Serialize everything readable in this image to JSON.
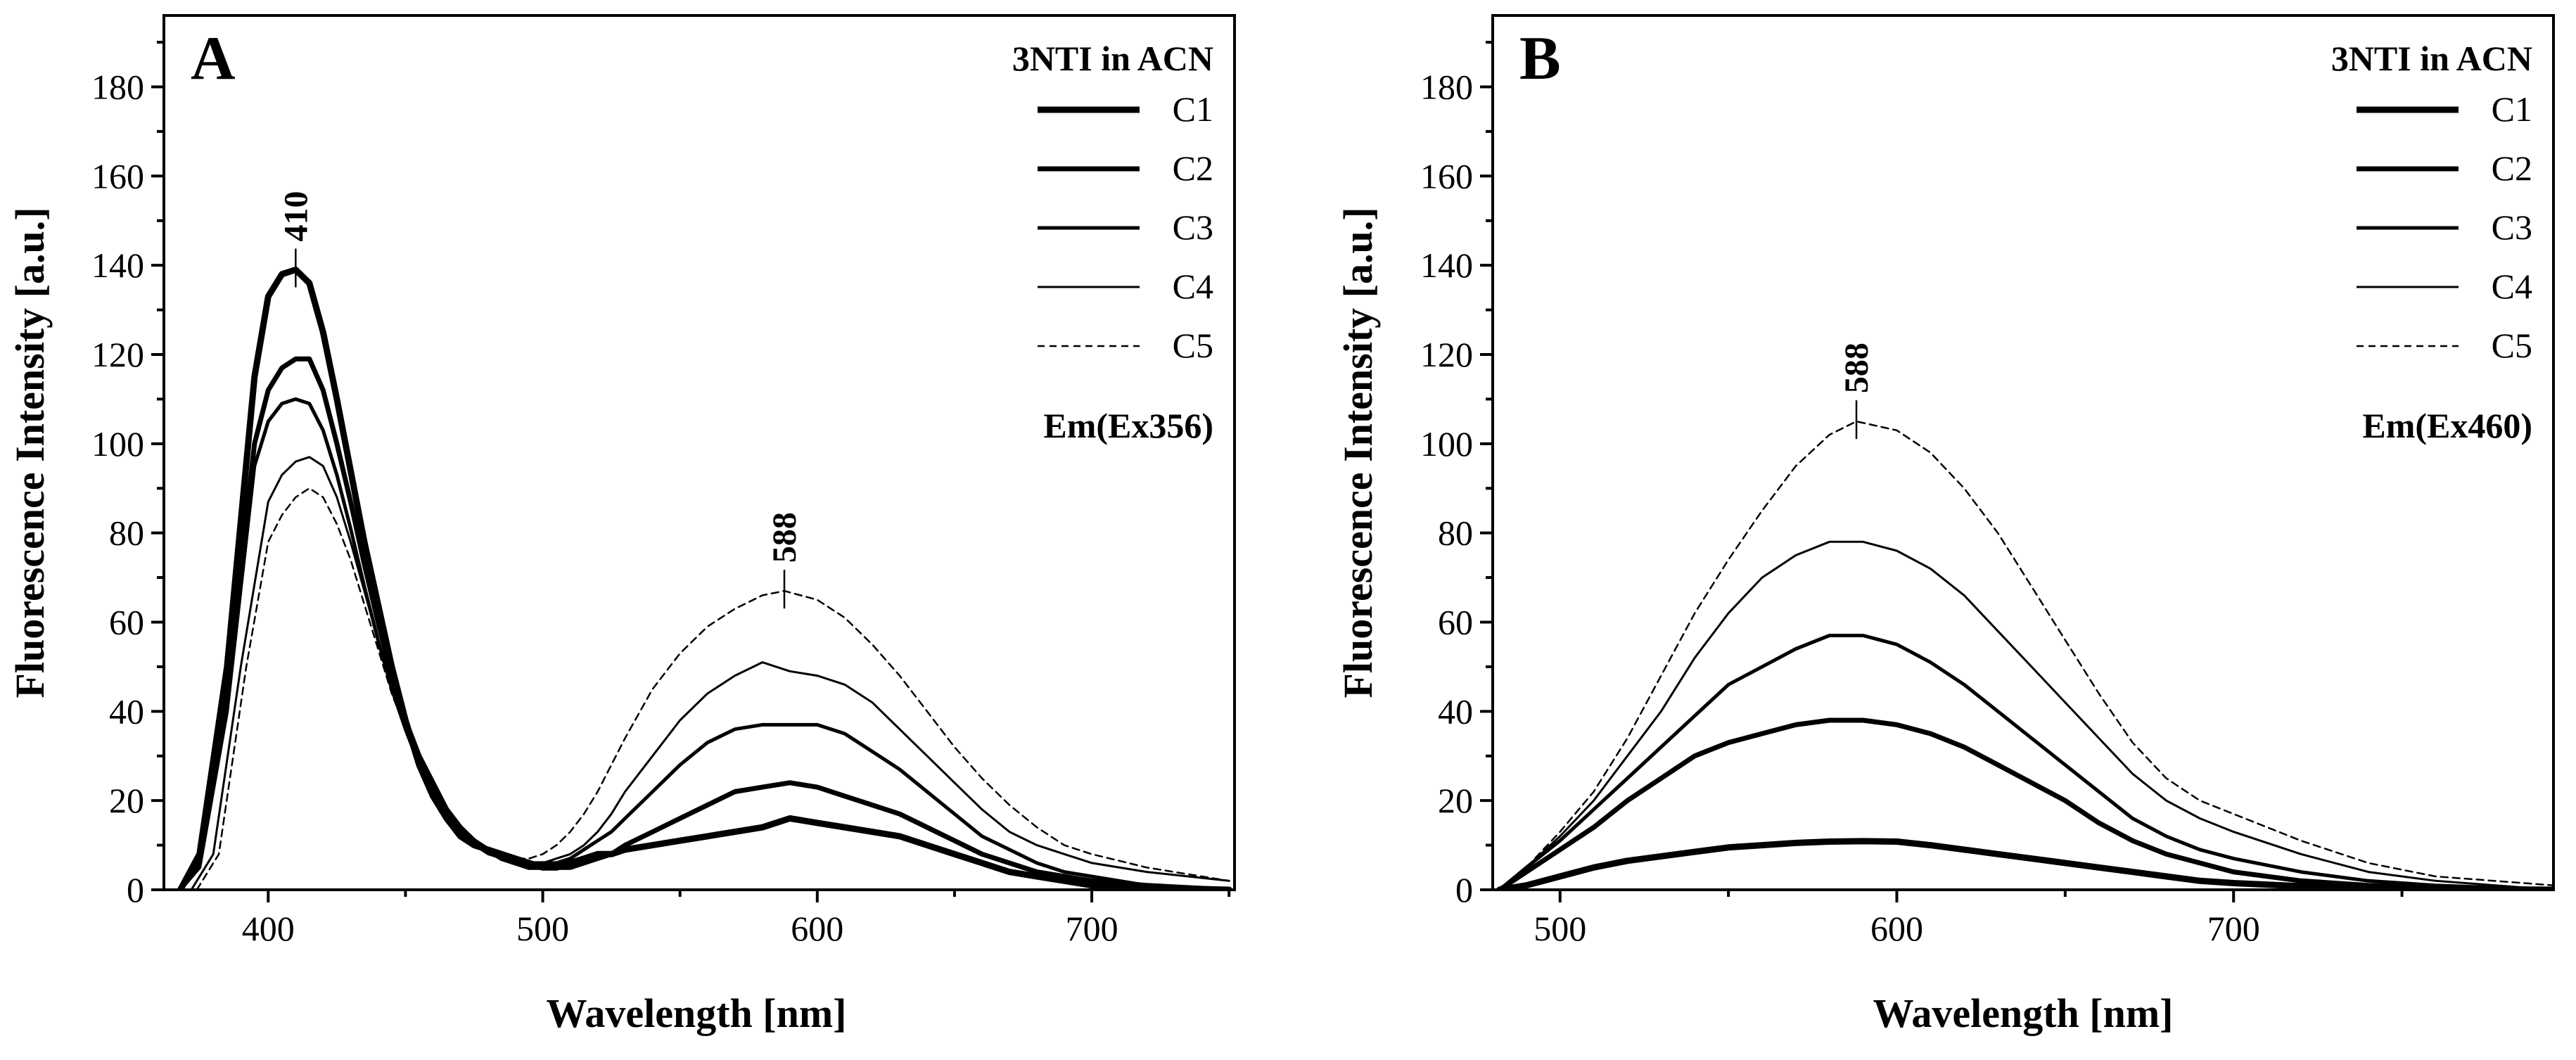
{
  "chart_data": [
    {
      "type": "line",
      "panel_label": "A",
      "xlabel": "Wavelength [nm]",
      "ylabel": "Fluorescence Intensity [a.u.]",
      "xlim": [
        362,
        752
      ],
      "ylim": [
        0,
        196
      ],
      "xticks": [
        400,
        500,
        600,
        700
      ],
      "yticks": [
        0,
        20,
        40,
        60,
        80,
        100,
        120,
        140,
        160,
        180
      ],
      "legend_title": "3NTI in ACN",
      "legend_placement": "top-right",
      "excitation_label": "Em(Ex356)",
      "peak_annotations": [
        {
          "text": "410",
          "x": 410,
          "y": 139
        },
        {
          "text": "588",
          "x": 588,
          "y": 67
        }
      ],
      "grid": false,
      "series": [
        {
          "name": "C1",
          "stroke_width": 9,
          "dash": "",
          "x": [
            368,
            375,
            385,
            395,
            400,
            405,
            410,
            415,
            420,
            425,
            430,
            435,
            440,
            445,
            450,
            455,
            460,
            465,
            470,
            475,
            480,
            485,
            490,
            495,
            500,
            505,
            510,
            515,
            520,
            525,
            530,
            540,
            550,
            560,
            570,
            580,
            590,
            600,
            610,
            620,
            630,
            640,
            650,
            660,
            670,
            680,
            690,
            700,
            720,
            750
          ],
          "y": [
            0,
            8,
            50,
            115,
            133,
            138,
            139,
            136,
            125,
            110,
            94,
            78,
            64,
            50,
            38,
            28,
            21,
            16,
            12,
            10,
            9,
            8,
            7,
            6,
            5,
            5,
            6,
            7,
            8,
            8,
            9,
            10,
            11,
            12,
            13,
            14,
            16,
            15,
            14,
            13,
            12,
            10,
            8,
            6,
            4,
            3,
            2,
            1,
            0.5,
            0
          ]
        },
        {
          "name": "C2",
          "stroke_width": 7,
          "dash": "",
          "x": [
            368,
            375,
            385,
            395,
            400,
            405,
            410,
            415,
            420,
            425,
            430,
            435,
            440,
            445,
            450,
            455,
            460,
            465,
            470,
            475,
            480,
            485,
            490,
            495,
            500,
            505,
            510,
            515,
            520,
            525,
            530,
            540,
            550,
            560,
            570,
            580,
            590,
            600,
            610,
            620,
            630,
            640,
            650,
            660,
            670,
            680,
            690,
            700,
            720,
            750
          ],
          "y": [
            0,
            6,
            45,
            100,
            112,
            117,
            119,
            119,
            112,
            100,
            87,
            73,
            60,
            48,
            38,
            30,
            24,
            18,
            14,
            11,
            9,
            7,
            6,
            5,
            5,
            5,
            5,
            6,
            7,
            8,
            10,
            13,
            16,
            19,
            22,
            23,
            24,
            23,
            21,
            19,
            17,
            14,
            11,
            8,
            6,
            4,
            3,
            2,
            1,
            0
          ]
        },
        {
          "name": "C3",
          "stroke_width": 5,
          "dash": "",
          "x": [
            368,
            375,
            385,
            395,
            400,
            405,
            410,
            415,
            420,
            425,
            430,
            435,
            440,
            445,
            450,
            455,
            460,
            465,
            470,
            475,
            480,
            485,
            490,
            495,
            500,
            505,
            510,
            515,
            520,
            525,
            530,
            540,
            550,
            560,
            570,
            580,
            590,
            600,
            610,
            620,
            630,
            640,
            650,
            660,
            670,
            680,
            690,
            700,
            720,
            750
          ],
          "y": [
            0,
            5,
            40,
            95,
            105,
            109,
            110,
            109,
            103,
            93,
            81,
            68,
            56,
            45,
            36,
            28,
            22,
            17,
            13,
            11,
            9,
            8,
            7,
            6,
            6,
            6,
            7,
            9,
            11,
            13,
            16,
            22,
            28,
            33,
            36,
            37,
            37,
            37,
            35,
            31,
            27,
            22,
            17,
            12,
            9,
            6,
            4,
            3,
            1,
            0
          ]
        },
        {
          "name": "C4",
          "stroke_width": 3,
          "dash": "",
          "x": [
            372,
            380,
            390,
            400,
            405,
            410,
            415,
            420,
            425,
            430,
            435,
            440,
            445,
            450,
            455,
            460,
            465,
            470,
            475,
            480,
            485,
            490,
            495,
            500,
            505,
            510,
            515,
            520,
            525,
            530,
            540,
            550,
            560,
            570,
            580,
            590,
            600,
            610,
            620,
            630,
            640,
            650,
            660,
            670,
            680,
            690,
            700,
            720,
            750
          ],
          "y": [
            0,
            8,
            50,
            87,
            93,
            96,
            97,
            95,
            88,
            78,
            67,
            56,
            45,
            36,
            28,
            22,
            17,
            13,
            10,
            8,
            7,
            6,
            6,
            6,
            7,
            8,
            10,
            13,
            17,
            22,
            30,
            38,
            44,
            48,
            51,
            49,
            48,
            46,
            42,
            36,
            30,
            24,
            18,
            13,
            10,
            8,
            6,
            4,
            2
          ]
        },
        {
          "name": "C5",
          "stroke_width": 2.5,
          "dash": "10,7",
          "x": [
            374,
            382,
            392,
            400,
            405,
            410,
            415,
            420,
            425,
            430,
            435,
            440,
            445,
            450,
            455,
            460,
            465,
            470,
            475,
            480,
            485,
            490,
            495,
            500,
            505,
            510,
            515,
            520,
            525,
            530,
            540,
            550,
            560,
            570,
            580,
            588,
            600,
            610,
            620,
            630,
            640,
            650,
            660,
            670,
            680,
            690,
            700,
            720,
            750
          ],
          "y": [
            0,
            8,
            50,
            78,
            84,
            88,
            90,
            88,
            82,
            74,
            64,
            54,
            44,
            36,
            28,
            22,
            17,
            13,
            10,
            8,
            7,
            7,
            7,
            8,
            10,
            13,
            17,
            22,
            28,
            34,
            45,
            53,
            59,
            63,
            66,
            67,
            65,
            61,
            55,
            48,
            40,
            32,
            25,
            19,
            14,
            10,
            8,
            5,
            2
          ]
        }
      ]
    },
    {
      "type": "line",
      "panel_label": "B",
      "xlabel": "Wavelength [nm]",
      "ylabel": "Fluorescence Intensity [a.u.]",
      "xlim": [
        480,
        795
      ],
      "ylim": [
        0,
        196
      ],
      "xticks": [
        500,
        600,
        700
      ],
      "yticks": [
        0,
        20,
        40,
        60,
        80,
        100,
        120,
        140,
        160,
        180
      ],
      "legend_title": "3NTI in ACN",
      "legend_placement": "top-right",
      "excitation_label": "Em(Ex460)",
      "peak_annotations": [
        {
          "text": "588",
          "x": 588,
          "y": 105
        }
      ],
      "grid": false,
      "series": [
        {
          "name": "C1",
          "stroke_width": 9,
          "dash": "",
          "x": [
            482,
            490,
            500,
            510,
            520,
            530,
            540,
            550,
            560,
            570,
            580,
            590,
            600,
            610,
            620,
            630,
            640,
            650,
            660,
            670,
            680,
            690,
            700,
            720,
            740,
            760,
            795
          ],
          "y": [
            0,
            1,
            3,
            5,
            6.5,
            7.5,
            8.5,
            9.5,
            10,
            10.5,
            10.8,
            10.9,
            10.8,
            10,
            9,
            8,
            7,
            6,
            5,
            4,
            3,
            2,
            1.5,
            0.8,
            0.4,
            0.2,
            0
          ]
        },
        {
          "name": "C2",
          "stroke_width": 7,
          "dash": "",
          "x": [
            482,
            490,
            500,
            510,
            520,
            530,
            540,
            550,
            560,
            570,
            580,
            590,
            600,
            610,
            620,
            630,
            640,
            650,
            660,
            670,
            680,
            690,
            700,
            720,
            740,
            760,
            795
          ],
          "y": [
            0,
            4,
            9,
            14,
            20,
            25,
            30,
            33,
            35,
            37,
            38,
            38,
            37,
            35,
            32,
            28,
            24,
            20,
            15,
            11,
            8,
            6,
            4,
            2,
            1,
            0.5,
            0
          ]
        },
        {
          "name": "C3",
          "stroke_width": 5,
          "dash": "",
          "x": [
            482,
            490,
            500,
            510,
            520,
            530,
            540,
            550,
            560,
            570,
            580,
            590,
            600,
            610,
            620,
            630,
            640,
            650,
            660,
            670,
            680,
            690,
            700,
            720,
            740,
            760,
            795
          ],
          "y": [
            0,
            5,
            11,
            18,
            25,
            32,
            39,
            46,
            50,
            54,
            57,
            57,
            55,
            51,
            46,
            40,
            34,
            28,
            22,
            16,
            12,
            9,
            7,
            4,
            2,
            1,
            0
          ]
        },
        {
          "name": "C4",
          "stroke_width": 3,
          "dash": "",
          "x": [
            482,
            490,
            500,
            510,
            520,
            530,
            540,
            550,
            560,
            570,
            580,
            590,
            600,
            610,
            620,
            630,
            640,
            650,
            660,
            670,
            680,
            690,
            700,
            720,
            740,
            760,
            795
          ],
          "y": [
            0,
            5,
            12,
            20,
            30,
            40,
            52,
            62,
            70,
            75,
            78,
            78,
            76,
            72,
            66,
            58,
            50,
            42,
            34,
            26,
            20,
            16,
            13,
            8,
            4,
            2,
            0
          ]
        },
        {
          "name": "C5",
          "stroke_width": 2.5,
          "dash": "10,7",
          "x": [
            482,
            490,
            500,
            510,
            520,
            530,
            540,
            550,
            560,
            570,
            580,
            588,
            600,
            610,
            620,
            630,
            640,
            650,
            660,
            670,
            680,
            690,
            700,
            720,
            740,
            760,
            795
          ],
          "y": [
            0,
            5,
            13,
            22,
            34,
            48,
            62,
            74,
            85,
            95,
            102,
            105,
            103,
            98,
            90,
            80,
            68,
            56,
            44,
            33,
            25,
            20,
            17,
            11,
            6,
            3,
            1
          ]
        }
      ]
    }
  ]
}
